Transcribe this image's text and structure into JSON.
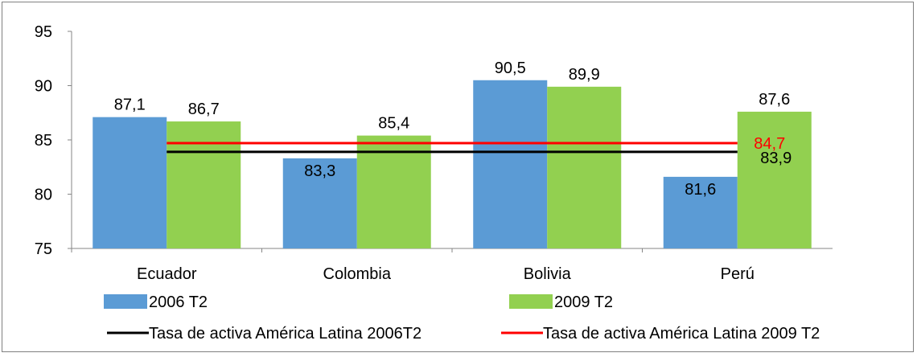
{
  "chart_data": {
    "type": "bar",
    "categories": [
      "Ecuador",
      "Colombia",
      "Bolivia",
      "Perú"
    ],
    "series": [
      {
        "name": "2006 T2",
        "values": [
          87.1,
          83.3,
          90.5,
          81.6
        ],
        "labels": [
          "87,1",
          "83,3",
          "90,5",
          "81,6"
        ],
        "color": "#5B9BD5"
      },
      {
        "name": "2009 T2",
        "values": [
          86.7,
          85.4,
          89.9,
          87.6
        ],
        "labels": [
          "86,7",
          "85,4",
          "89,9",
          "87,6"
        ],
        "color": "#92D050"
      }
    ],
    "reference_lines": [
      {
        "name": "Tasa de activa América Latina 2006T2",
        "value": 83.9,
        "label": "83,9",
        "color": "#000000"
      },
      {
        "name": "Tasa de activa América Latina 2009 T2",
        "value": 84.7,
        "label": "84,7",
        "color": "#FF0000"
      }
    ],
    "yticks": [
      "75",
      "80",
      "85",
      "90",
      "95"
    ],
    "ylim": [
      75,
      95
    ],
    "grid": false,
    "legend_position": "bottom",
    "title": "",
    "xlabel": "",
    "ylabel": ""
  }
}
